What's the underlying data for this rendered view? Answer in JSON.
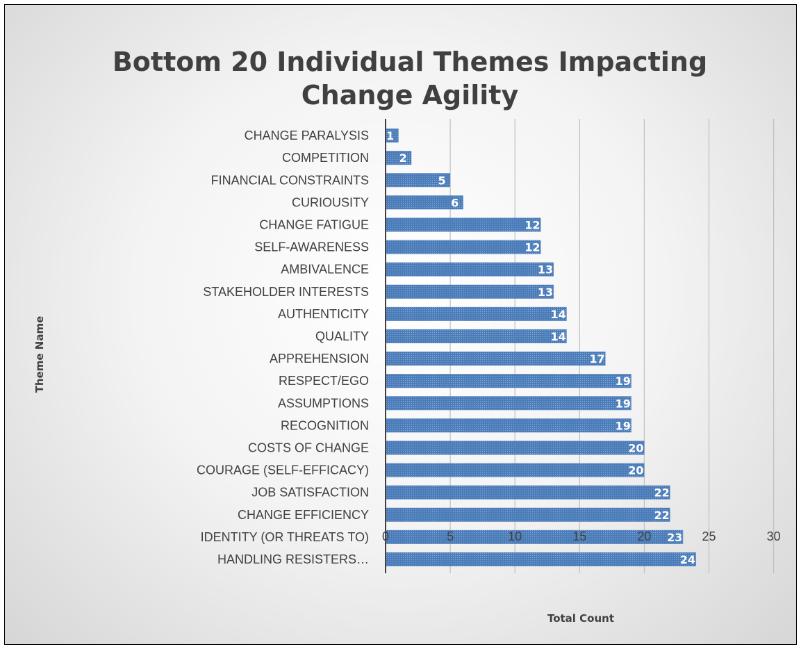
{
  "chart_data": {
    "type": "bar",
    "orientation": "horizontal",
    "title_lines": [
      "Bottom 20 Individual Themes Impacting",
      "Change Agility"
    ],
    "xlabel": "Total Count",
    "ylabel": "Theme Name",
    "xlim": [
      0,
      30
    ],
    "xticks": [
      "0",
      "5",
      "10",
      "15",
      "20",
      "25",
      "30"
    ],
    "grid": true,
    "bar_color": "#4f81bd",
    "categories": [
      "CHANGE PARALYSIS",
      "COMPETITION",
      "FINANCIAL CONSTRAINTS",
      "CURIOUSITY",
      "CHANGE FATIGUE",
      "SELF-AWARENESS",
      "AMBIVALENCE",
      "STAKEHOLDER INTERESTS",
      "AUTHENTICITY",
      "QUALITY",
      "APPREHENSION",
      "RESPECT/EGO",
      "ASSUMPTIONS",
      "RECOGNITION",
      "COSTS OF CHANGE",
      "COURAGE (SELF-EFFICACY)",
      "JOB SATISFACTION",
      "CHANGE EFFICIENCY",
      "IDENTITY (OR THREATS TO)",
      "HANDLING RESISTERS…"
    ],
    "values": [
      1,
      2,
      5,
      6,
      12,
      12,
      13,
      13,
      14,
      14,
      17,
      19,
      19,
      19,
      20,
      20,
      22,
      22,
      23,
      24
    ]
  }
}
